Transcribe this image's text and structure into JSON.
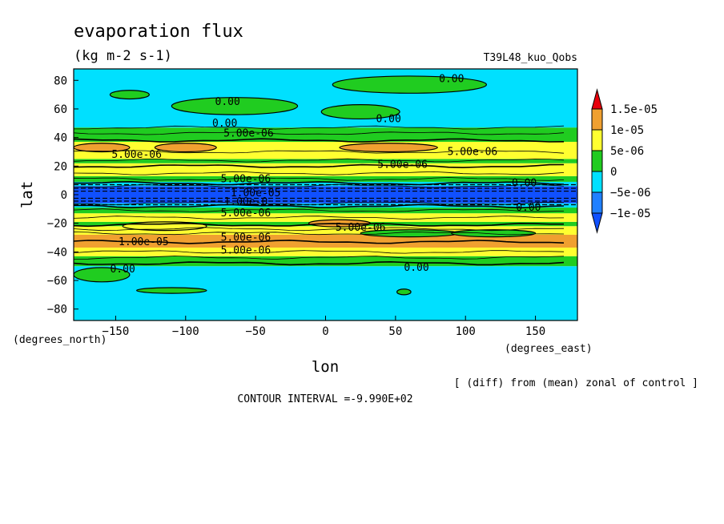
{
  "chart_data": {
    "type": "heatmap",
    "title": "evaporation flux",
    "units": "(kg m-2 s-1)",
    "run_label": "T39L48_kuo_Qobs",
    "xlabel": "lon",
    "ylabel": "lat",
    "x_unit_label": "(degrees_east)",
    "y_unit_label": "(degrees_north)",
    "xlim": [
      -180,
      180
    ],
    "ylim": [
      -88,
      88
    ],
    "xticks": [
      -150,
      -100,
      -50,
      0,
      50,
      100,
      150
    ],
    "yticks": [
      -80,
      -60,
      -40,
      -20,
      0,
      20,
      40,
      60,
      80
    ],
    "grid": false,
    "footer": "CONTOUR INTERVAL =-9.990E+02",
    "note": "[ (diff) from (mean) zonal of control ]",
    "legend": {
      "placement": "right",
      "levels": [
        "1.5e-05",
        "1e-05",
        "5e-06",
        "0",
        "-5e-06",
        "-1e-05"
      ],
      "colors": [
        "#e8000b",
        "#f0a030",
        "#ffff30",
        "#20cc20",
        "#00e0ff",
        "#2080ff",
        "#1050ff"
      ]
    },
    "bands": [
      {
        "lat_min": -88,
        "lat_max": -50,
        "class": "cyan"
      },
      {
        "lat_min": -50,
        "lat_max": -43,
        "class": "green"
      },
      {
        "lat_min": -43,
        "lat_max": -37,
        "class": "yellow"
      },
      {
        "lat_min": -37,
        "lat_max": -28,
        "class": "orange"
      },
      {
        "lat_min": -28,
        "lat_max": -22,
        "class": "yellow"
      },
      {
        "lat_min": -22,
        "lat_max": -19,
        "class": "green"
      },
      {
        "lat_min": -19,
        "lat_max": -13,
        "class": "yellow"
      },
      {
        "lat_min": -13,
        "lat_max": -9,
        "class": "green"
      },
      {
        "lat_min": -9,
        "lat_max": -6,
        "class": "cyan"
      },
      {
        "lat_min": -6,
        "lat_max": 6,
        "class": "blue"
      },
      {
        "lat_min": 6,
        "lat_max": 9,
        "class": "cyan"
      },
      {
        "lat_min": 9,
        "lat_max": 13,
        "class": "green"
      },
      {
        "lat_min": 13,
        "lat_max": 22,
        "class": "yellow"
      },
      {
        "lat_min": 22,
        "lat_max": 25,
        "class": "green"
      },
      {
        "lat_min": 25,
        "lat_max": 37,
        "class": "yellow"
      },
      {
        "lat_min": 37,
        "lat_max": 47,
        "class": "green"
      },
      {
        "lat_min": 47,
        "lat_max": 88,
        "class": "cyan"
      }
    ],
    "patches": [
      {
        "lon": -140,
        "lat": 70,
        "rx": 14,
        "ry": 3,
        "class": "green"
      },
      {
        "lon": -65,
        "lat": 62,
        "rx": 45,
        "ry": 6,
        "class": "green"
      },
      {
        "lon": 25,
        "lat": 58,
        "rx": 28,
        "ry": 5,
        "class": "green"
      },
      {
        "lon": 60,
        "lat": 77,
        "rx": 55,
        "ry": 6,
        "class": "green"
      },
      {
        "lon": 45,
        "lat": 33,
        "rx": 35,
        "ry": 3,
        "class": "orange"
      },
      {
        "lon": -160,
        "lat": 33,
        "rx": 20,
        "ry": 3,
        "class": "orange"
      },
      {
        "lon": -100,
        "lat": 33,
        "rx": 22,
        "ry": 3,
        "class": "orange"
      },
      {
        "lon": -160,
        "lat": -56,
        "rx": 20,
        "ry": 5,
        "class": "green"
      },
      {
        "lon": 10,
        "lat": -20,
        "rx": 22,
        "ry": 2.5,
        "class": "orange"
      },
      {
        "lon": -115,
        "lat": -22,
        "rx": 30,
        "ry": 3,
        "class": "yellow"
      },
      {
        "lon": 60,
        "lat": -27,
        "rx": 35,
        "ry": 2.5,
        "class": "green"
      },
      {
        "lon": 120,
        "lat": -27,
        "rx": 30,
        "ry": 2.5,
        "class": "green"
      },
      {
        "lon": 56,
        "lat": -68,
        "rx": 5,
        "ry": 2,
        "class": "green"
      },
      {
        "lon": -110,
        "lat": -67,
        "rx": 25,
        "ry": 2,
        "class": "green"
      }
    ],
    "contour_lines": [
      -48,
      -44,
      -40,
      -33,
      -27,
      -24,
      -21,
      -16,
      -11,
      -8,
      -6,
      6,
      8,
      11,
      15,
      20,
      24,
      30,
      38,
      43,
      47
    ],
    "dashed_lines": [
      -7,
      -4.5,
      -2.5,
      2.5,
      4.5,
      7
    ],
    "contour_labels": [
      {
        "text": "0.00",
        "lon": 90,
        "lat": 81
      },
      {
        "text": "0.00",
        "lon": -70,
        "lat": 65
      },
      {
        "text": "0.00",
        "lon": 45,
        "lat": 53
      },
      {
        "text": "0.00",
        "lon": -72,
        "lat": 50
      },
      {
        "text": "5.00e-06",
        "lon": -55,
        "lat": 43
      },
      {
        "text": "5.00e-06",
        "lon": -135,
        "lat": 28
      },
      {
        "text": "5.00e-06",
        "lon": 105,
        "lat": 30
      },
      {
        "text": "5.00e-06",
        "lon": 55,
        "lat": 21
      },
      {
        "text": "5.00e-06",
        "lon": -57,
        "lat": 11
      },
      {
        "text": "1.00e-05",
        "lon": -50,
        "lat": 1
      },
      {
        "text": "0.00",
        "lon": 142,
        "lat": 8
      },
      {
        "text": "1.00e-0",
        "lon": -57,
        "lat": -5
      },
      {
        "text": "5.00e-06",
        "lon": -57,
        "lat": -13
      },
      {
        "text": "0.00",
        "lon": 145,
        "lat": -9
      },
      {
        "text": "5.00e-06",
        "lon": 25,
        "lat": -23
      },
      {
        "text": "5.00e-06",
        "lon": -57,
        "lat": -30
      },
      {
        "text": "1.00e-05",
        "lon": -130,
        "lat": -33
      },
      {
        "text": "5.00e-06",
        "lon": -57,
        "lat": -39
      },
      {
        "text": "0.00",
        "lon": -145,
        "lat": -52
      },
      {
        "text": "0.00",
        "lon": 65,
        "lat": -51
      }
    ]
  }
}
